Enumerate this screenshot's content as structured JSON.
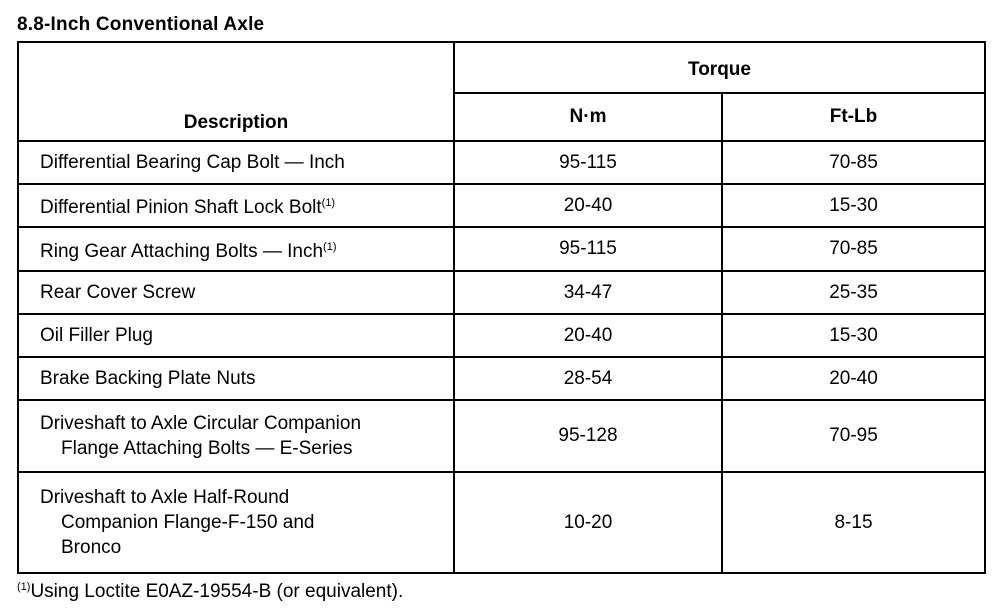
{
  "title": "8.8-Inch Conventional Axle",
  "headers": {
    "description": "Description",
    "torque": "Torque",
    "nm": "N·m",
    "ftlb": "Ft-Lb"
  },
  "rows": [
    {
      "desc": [
        "Differential Bearing Cap Bolt — Inch"
      ],
      "sup": "",
      "nm": "95-115",
      "ftlb": "70-85"
    },
    {
      "desc": [
        "Differential Pinion Shaft Lock Bolt"
      ],
      "sup": "(1)",
      "nm": "20-40",
      "ftlb": "15-30"
    },
    {
      "desc": [
        "Ring Gear Attaching Bolts — Inch"
      ],
      "sup": "(1)",
      "nm": "95-115",
      "ftlb": "70-85"
    },
    {
      "desc": [
        "Rear Cover Screw"
      ],
      "sup": "",
      "nm": "34-47",
      "ftlb": "25-35"
    },
    {
      "desc": [
        "Oil Filler Plug"
      ],
      "sup": "",
      "nm": "20-40",
      "ftlb": "15-30"
    },
    {
      "desc": [
        "Brake Backing Plate Nuts"
      ],
      "sup": "",
      "nm": "28-54",
      "ftlb": "20-40"
    },
    {
      "desc": [
        "Driveshaft to Axle Circular Companion",
        "Flange Attaching Bolts — E-Series"
      ],
      "sup": "",
      "nm": "95-128",
      "ftlb": "70-95"
    },
    {
      "desc": [
        "Driveshaft to Axle Half-Round",
        "Companion Flange-F-150 and",
        "Bronco"
      ],
      "sup": "",
      "nm": "10-20",
      "ftlb": "8-15"
    }
  ],
  "footnote": {
    "mark": "(1)",
    "text": "Using Loctite E0AZ-19554-B (or equivalent)."
  }
}
